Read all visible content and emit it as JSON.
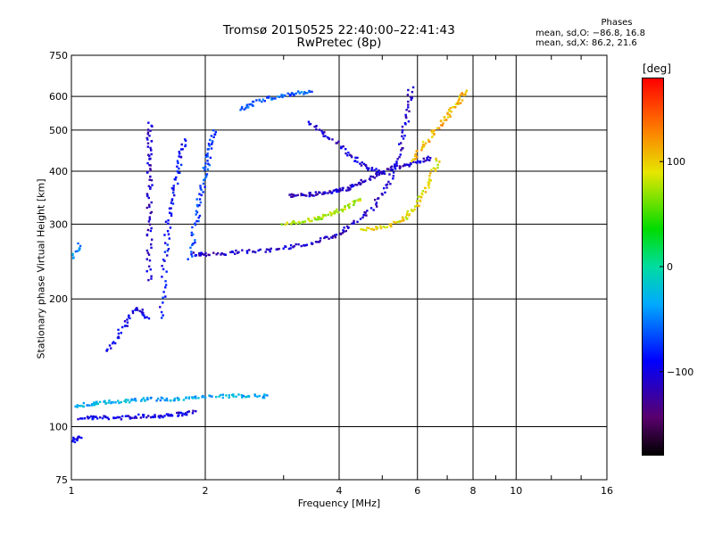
{
  "header": {
    "title_line1": "Tromsø 20150525 22:40:00–22:41:43",
    "title_line2": "RwPretec (8p)"
  },
  "stats": {
    "heading": "Phases",
    "line_o": "mean, sd,O: −86.8, 16.8",
    "line_x": "mean, sd,X:  86.2, 21.6"
  },
  "colorbar": {
    "label": "[deg]",
    "ticks": [
      "100",
      "0",
      "−100"
    ],
    "tick_values": [
      100,
      0,
      -100
    ],
    "range": [
      -180,
      180
    ]
  },
  "chart_data": {
    "type": "scatter",
    "xlabel": "Frequency [MHz]",
    "ylabel": "Stationary phase Virtual Height [km]",
    "xscale": "log",
    "yscale": "log",
    "xlim": [
      1,
      16
    ],
    "ylim": [
      75,
      750
    ],
    "xticks": [
      1,
      2,
      4,
      6,
      8,
      10,
      16
    ],
    "xtick_labels": [
      "1",
      "2",
      "4",
      "6",
      "8",
      "10",
      "16"
    ],
    "yticks": [
      75,
      100,
      200,
      300,
      400,
      500,
      600,
      750
    ],
    "ytick_labels": [
      "75",
      "100",
      "200",
      "300",
      "400",
      "500",
      "600",
      "750"
    ],
    "grid": true,
    "traces": [
      {
        "x": [
          1.05,
          1.15,
          1.3,
          1.45,
          1.6,
          1.75,
          1.9
        ],
        "y": [
          105,
          105,
          105,
          106,
          106,
          107,
          108
        ],
        "phase": -100
      },
      {
        "x": [
          1.0,
          1.1,
          1.2,
          1.35,
          1.5,
          1.7,
          1.9,
          2.2,
          2.5,
          2.8
        ],
        "y": [
          112,
          113,
          114,
          115,
          116,
          116,
          117,
          118,
          118,
          118
        ],
        "phase": -35
      },
      {
        "x": [
          1.0,
          1.05
        ],
        "y": [
          92,
          95
        ],
        "phase": -100
      },
      {
        "x": [
          1.0,
          1.05
        ],
        "y": [
          245,
          270
        ],
        "phase": -40
      },
      {
        "x": [
          1.2,
          1.3,
          1.4,
          1.5
        ],
        "y": [
          150,
          170,
          190,
          180
        ],
        "phase": -95
      },
      {
        "x": [
          1.5,
          1.5,
          1.5,
          1.5,
          1.5,
          1.5
        ],
        "y": [
          220,
          280,
          340,
          400,
          460,
          520
        ],
        "phase": -110
      },
      {
        "x": [
          1.6,
          1.62,
          1.65,
          1.7,
          1.75,
          1.8
        ],
        "y": [
          180,
          240,
          300,
          360,
          420,
          480
        ],
        "phase": -90
      },
      {
        "x": [
          1.85,
          1.9,
          1.95,
          2.0,
          2.05,
          2.1
        ],
        "y": [
          250,
          300,
          350,
          400,
          450,
          500
        ],
        "phase": -70
      },
      {
        "x": [
          1.9,
          2.0,
          2.3,
          2.7,
          3.1,
          3.5,
          3.9,
          4.3,
          4.8,
          5.2,
          5.5,
          5.7,
          5.8
        ],
        "y": [
          255,
          255,
          257,
          260,
          265,
          272,
          282,
          300,
          330,
          380,
          450,
          540,
          640
        ],
        "phase": -110
      },
      {
        "x": [
          3.1,
          3.4,
          3.7,
          4.0,
          4.3,
          4.6,
          5.0,
          5.5,
          6.0,
          6.4
        ],
        "y": [
          350,
          352,
          355,
          360,
          368,
          380,
          398,
          410,
          420,
          430
        ],
        "phase": -110
      },
      {
        "x": [
          3.0,
          3.3,
          3.6,
          3.9,
          4.2,
          4.5
        ],
        "y": [
          300,
          305,
          310,
          318,
          330,
          345
        ],
        "phase": 75
      },
      {
        "x": [
          4.5,
          5.0,
          5.5,
          5.8,
          6.1,
          6.4,
          6.7
        ],
        "y": [
          290,
          295,
          305,
          320,
          345,
          380,
          430
        ],
        "phase": 95
      },
      {
        "x": [
          5.8,
          6.2,
          6.6,
          7.0,
          7.4,
          7.7
        ],
        "y": [
          420,
          460,
          500,
          540,
          580,
          620
        ],
        "phase": 110
      },
      {
        "x": [
          2.4,
          2.6,
          2.9,
          3.2,
          3.5
        ],
        "y": [
          560,
          580,
          600,
          610,
          615
        ],
        "phase": -60
      },
      {
        "x": [
          3.4,
          3.8,
          4.2,
          4.6,
          5.0
        ],
        "y": [
          520,
          480,
          440,
          410,
          395
        ],
        "phase": -105
      }
    ]
  }
}
